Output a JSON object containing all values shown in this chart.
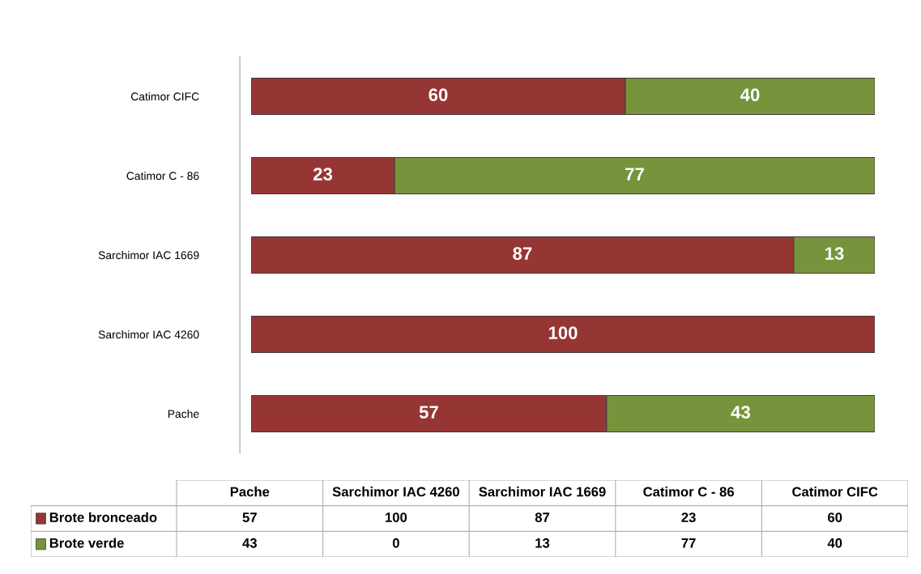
{
  "chart_data": {
    "type": "bar",
    "orientation": "horizontal",
    "stacked": true,
    "legend": "bottom",
    "grid": false,
    "categories": [
      "Catimor CIFC",
      "Catimor C - 86",
      "Sarchimor IAC 1669",
      "Sarchimor IAC 4260",
      "Pache"
    ],
    "series": [
      {
        "name": "Brote bronceado",
        "color": "#963634",
        "values": [
          60,
          23,
          87,
          100,
          57
        ],
        "value_labels": [
          "60",
          "23",
          "87",
          "100",
          "57"
        ]
      },
      {
        "name": "Brote verde",
        "color": "#77933c",
        "values": [
          40,
          77,
          13,
          0,
          43
        ],
        "value_labels": [
          "40",
          "77",
          "13",
          null,
          "43"
        ]
      }
    ],
    "annotations": [
      "57",
      "100",
      "87",
      "23",
      "60",
      "43",
      "0",
      "13",
      "77",
      "40"
    ]
  }
}
